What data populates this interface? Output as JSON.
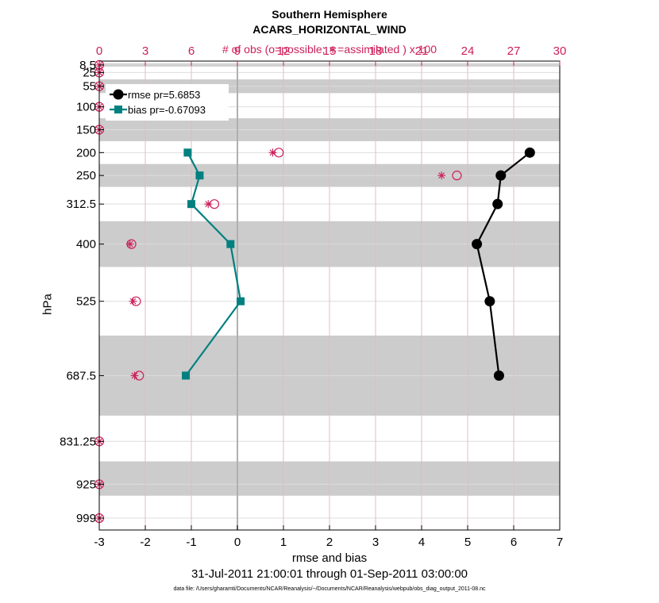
{
  "chart_data": {
    "type": "line",
    "title": "Southern Hemisphere",
    "subtitle": "ACARS_HORIZONTAL_WIND",
    "top_axis_label": "# of obs (o=possible; ∗=assimilated ) x 100",
    "xlabel": "rmse and bias",
    "ylabel": "hPa",
    "date_range": "31-Jul-2011 21:00:01 through 01-Sep-2011 03:00:00",
    "footnote": "data file: /Users/gharamti/Documents/NCAR/Reanalysis/~/Documents/NCAR/Reanalysis/webpub/obs_diag_output_2011-08.nc",
    "xlim": [
      -3,
      7
    ],
    "x_ticks": [
      -3,
      -2,
      -1,
      0,
      1,
      2,
      3,
      4,
      5,
      6,
      7
    ],
    "top_xlim": [
      0,
      30
    ],
    "top_ticks": [
      0,
      3,
      6,
      9,
      12,
      15,
      18,
      21,
      24,
      27,
      30
    ],
    "ylim": [
      1025,
      0
    ],
    "y_ticks": [
      8.5,
      25,
      55,
      100,
      150,
      200,
      250,
      312.5,
      400,
      525,
      687.5,
      831.25,
      925,
      999
    ],
    "y_tick_labels": [
      "8.5",
      "25",
      "55",
      "100",
      "150",
      "200",
      "250",
      "312.5",
      "400",
      "525",
      "687.5",
      "831.25",
      "925",
      "999"
    ],
    "layer_bands": [
      [
        5,
        12
      ],
      [
        40,
        70
      ],
      [
        125,
        175
      ],
      [
        225,
        275
      ],
      [
        350,
        450
      ],
      [
        600,
        775
      ],
      [
        875,
        950
      ]
    ],
    "grid": true,
    "legend_position": "top-left",
    "series": [
      {
        "name": "rmse pr=5.6853",
        "color": "#000000",
        "marker": "circle",
        "levels": [
          200,
          250,
          312.5,
          400,
          525,
          687.5
        ],
        "values": [
          6.35,
          5.72,
          5.65,
          5.2,
          5.48,
          5.68
        ]
      },
      {
        "name": "bias pr=-0.67093",
        "color": "#008080",
        "marker": "square",
        "levels": [
          200,
          250,
          312.5,
          400,
          525,
          687.5
        ],
        "values": [
          -1.08,
          -0.82,
          -1.0,
          -0.15,
          0.07,
          -1.12
        ]
      }
    ],
    "obs_counts_x100": {
      "levels": [
        8.5,
        25,
        55,
        100,
        150,
        200,
        250,
        312.5,
        400,
        525,
        687.5,
        831.25,
        925,
        999
      ],
      "possible": [
        0,
        0,
        0,
        0,
        0,
        11.7,
        23.3,
        7.5,
        2.1,
        2.4,
        2.6,
        0,
        0,
        0
      ],
      "assimilated": [
        0,
        0,
        0,
        0,
        0,
        11.3,
        22.3,
        7.1,
        2.0,
        2.2,
        2.3,
        0,
        0,
        0
      ]
    },
    "colors": {
      "obs": "#cc1f5a",
      "band": "#cccccc",
      "grid": "#dddddd",
      "top_grid": "#e3b8c8",
      "zero_line": "#b0b0b0"
    }
  }
}
